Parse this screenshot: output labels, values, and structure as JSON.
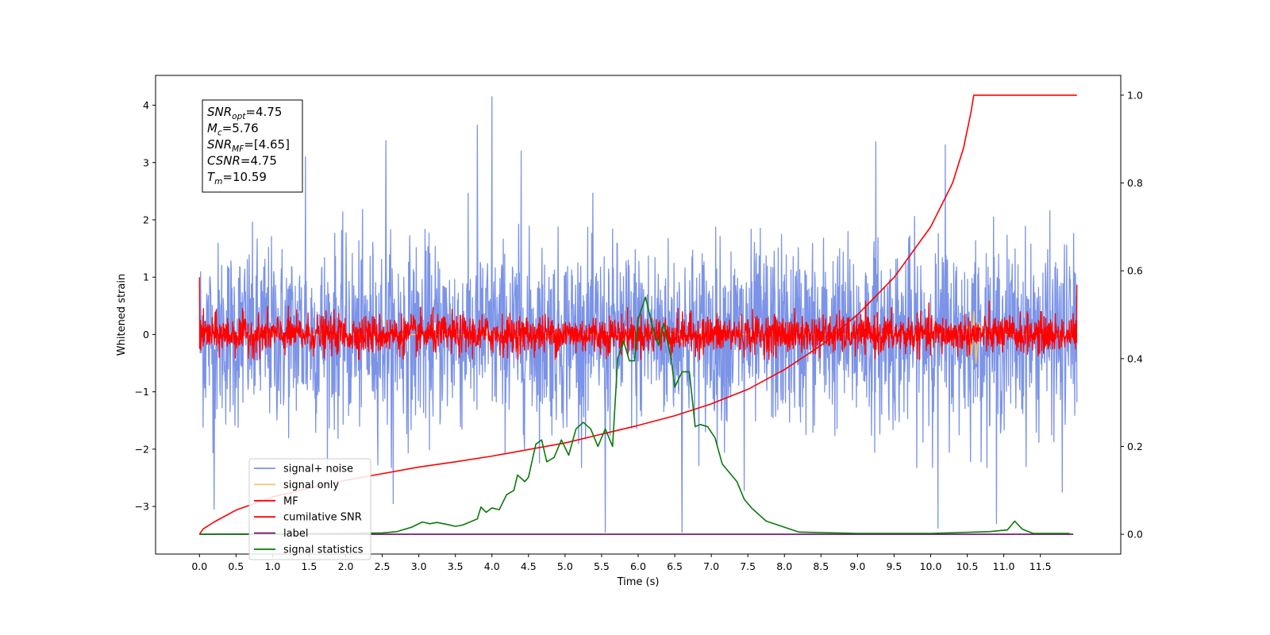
{
  "chart_data": {
    "type": "line",
    "xlabel": "Time (s)",
    "ylabel": "Whitened strain",
    "xlim": [
      -0.6,
      12.6
    ],
    "ylim": [
      -3.83,
      4.52
    ],
    "y2lim": [
      -0.045,
      1.045
    ],
    "x_ticks": [
      0.0,
      0.5,
      1.0,
      1.5,
      2.0,
      2.5,
      3.0,
      3.5,
      4.0,
      4.5,
      5.0,
      5.5,
      6.0,
      6.5,
      7.0,
      7.5,
      8.0,
      8.5,
      9.0,
      9.5,
      10.0,
      10.5,
      11.0,
      11.5
    ],
    "x_tick_labels": [
      "0.0",
      "0.5",
      "1.0",
      "1.5",
      "2.0",
      "2.5",
      "3.0",
      "3.5",
      "4.0",
      "4.5",
      "5.0",
      "5.5",
      "6.0",
      "6.5",
      "7.0",
      "7.5",
      "8.0",
      "8.5",
      "9.0",
      "9.5",
      "10.0",
      "10.5",
      "11.0",
      "11.5"
    ],
    "y_ticks": [
      -3,
      -2,
      -1,
      0,
      1,
      2,
      3,
      4
    ],
    "y_tick_labels": [
      "−3",
      "−2",
      "−1",
      "0",
      "1",
      "2",
      "3",
      "4"
    ],
    "y2_ticks": [
      0.0,
      0.2,
      0.4,
      0.6,
      0.8,
      1.0
    ],
    "y2_tick_labels": [
      "0.0",
      "0.2",
      "0.4",
      "0.6",
      "0.8",
      "1.0"
    ],
    "annotation": {
      "lines": [
        {
          "base": "SNR",
          "sub": "opt",
          "rest": "=4.75"
        },
        {
          "base": "M",
          "sub": "c",
          "rest": "=5.76"
        },
        {
          "base": "SNR",
          "sub": "MF",
          "rest": "=[4.65]"
        },
        {
          "base": "CSNR",
          "sub": "",
          "rest": "=4.75"
        },
        {
          "base": "T",
          "sub": "m",
          "rest": "=10.59"
        }
      ]
    },
    "legend": {
      "placement": "lower-left",
      "entries": [
        "signal+ noise",
        "signal only",
        "MF",
        "cumilative SNR",
        "label",
        "signal statistics"
      ]
    },
    "series": [
      {
        "name": "signal+ noise",
        "axis": "left",
        "color": "#7b93e8",
        "noise_band": {
          "t_start": 0.0,
          "t_end": 12.0,
          "center": 0.0,
          "typical_low": -1.6,
          "typical_high": 1.7
        },
        "peaks": [
          {
            "x": 3.8,
            "y": 3.65
          },
          {
            "x": 4.0,
            "y": 4.15
          },
          {
            "x": 2.55,
            "y": 3.38
          },
          {
            "x": 9.25,
            "y": 3.36
          },
          {
            "x": 10.2,
            "y": 3.31
          },
          {
            "x": 4.4,
            "y": 3.2
          },
          {
            "x": 1.45,
            "y": 3.1
          },
          {
            "x": 5.55,
            "y": -3.45
          },
          {
            "x": 6.6,
            "y": -3.45
          },
          {
            "x": 10.1,
            "y": -3.38
          },
          {
            "x": 10.9,
            "y": -3.3
          },
          {
            "x": 0.2,
            "y": -3.05
          },
          {
            "x": 2.65,
            "y": -2.95
          },
          {
            "x": 11.8,
            "y": -2.75
          },
          {
            "x": 7.45,
            "y": -2.72
          }
        ]
      },
      {
        "name": "signal only",
        "axis": "left",
        "color": "#f5c46b",
        "points": [
          [
            0.0,
            0.0
          ],
          [
            10.4,
            0.0
          ],
          [
            10.52,
            0.15
          ],
          [
            10.56,
            -0.35
          ],
          [
            10.59,
            0.4
          ],
          [
            10.62,
            -0.5
          ],
          [
            10.66,
            0.2
          ],
          [
            10.7,
            0.0
          ],
          [
            12.0,
            0.0
          ]
        ]
      },
      {
        "name": "MF",
        "axis": "left",
        "color": "#ff0000",
        "noise_band": {
          "t_start": 0.0,
          "t_end": 12.0,
          "center": 0.0,
          "typical_low": -0.3,
          "typical_high": 0.4
        },
        "start_value": 1.0,
        "end_value": 0.87
      },
      {
        "name": "cumilative SNR",
        "axis": "right",
        "color": "#ff0000",
        "points": [
          [
            0.0,
            0.0
          ],
          [
            0.05,
            0.012
          ],
          [
            0.2,
            0.028
          ],
          [
            0.5,
            0.055
          ],
          [
            1.0,
            0.085
          ],
          [
            1.5,
            0.105
          ],
          [
            2.0,
            0.123
          ],
          [
            2.5,
            0.138
          ],
          [
            3.0,
            0.153
          ],
          [
            3.5,
            0.165
          ],
          [
            4.0,
            0.178
          ],
          [
            4.5,
            0.193
          ],
          [
            5.0,
            0.208
          ],
          [
            5.5,
            0.228
          ],
          [
            6.0,
            0.248
          ],
          [
            6.5,
            0.27
          ],
          [
            7.0,
            0.297
          ],
          [
            7.5,
            0.33
          ],
          [
            8.0,
            0.375
          ],
          [
            8.5,
            0.43
          ],
          [
            9.0,
            0.5
          ],
          [
            9.5,
            0.585
          ],
          [
            10.0,
            0.7
          ],
          [
            10.3,
            0.8
          ],
          [
            10.45,
            0.88
          ],
          [
            10.55,
            0.96
          ],
          [
            10.59,
            1.0
          ],
          [
            12.0,
            1.0
          ]
        ]
      },
      {
        "name": "label",
        "axis": "right",
        "color": "#6a0d6a",
        "points": [
          [
            0.0,
            0.0
          ],
          [
            11.95,
            0.0
          ]
        ]
      },
      {
        "name": "signal statistics",
        "axis": "right",
        "color": "#0a7a0a",
        "points": [
          [
            0.0,
            0.0
          ],
          [
            1.0,
            0.001
          ],
          [
            2.0,
            0.002
          ],
          [
            2.5,
            0.003
          ],
          [
            2.7,
            0.006
          ],
          [
            2.9,
            0.016
          ],
          [
            3.05,
            0.028
          ],
          [
            3.15,
            0.024
          ],
          [
            3.25,
            0.027
          ],
          [
            3.4,
            0.022
          ],
          [
            3.5,
            0.018
          ],
          [
            3.6,
            0.021
          ],
          [
            3.7,
            0.028
          ],
          [
            3.8,
            0.035
          ],
          [
            3.85,
            0.062
          ],
          [
            3.92,
            0.05
          ],
          [
            4.0,
            0.06
          ],
          [
            4.1,
            0.056
          ],
          [
            4.2,
            0.09
          ],
          [
            4.3,
            0.1
          ],
          [
            4.35,
            0.135
          ],
          [
            4.45,
            0.12
          ],
          [
            4.5,
            0.13
          ],
          [
            4.6,
            0.205
          ],
          [
            4.68,
            0.215
          ],
          [
            4.75,
            0.165
          ],
          [
            4.85,
            0.175
          ],
          [
            4.95,
            0.215
          ],
          [
            5.05,
            0.18
          ],
          [
            5.15,
            0.24
          ],
          [
            5.25,
            0.255
          ],
          [
            5.35,
            0.24
          ],
          [
            5.45,
            0.2
          ],
          [
            5.55,
            0.24
          ],
          [
            5.65,
            0.2
          ],
          [
            5.72,
            0.4
          ],
          [
            5.8,
            0.44
          ],
          [
            5.88,
            0.395
          ],
          [
            5.95,
            0.395
          ],
          [
            6.0,
            0.49
          ],
          [
            6.1,
            0.54
          ],
          [
            6.2,
            0.47
          ],
          [
            6.28,
            0.43
          ],
          [
            6.35,
            0.48
          ],
          [
            6.45,
            0.4
          ],
          [
            6.5,
            0.335
          ],
          [
            6.6,
            0.37
          ],
          [
            6.7,
            0.37
          ],
          [
            6.78,
            0.245
          ],
          [
            6.85,
            0.25
          ],
          [
            6.95,
            0.245
          ],
          [
            7.05,
            0.22
          ],
          [
            7.15,
            0.16
          ],
          [
            7.25,
            0.14
          ],
          [
            7.35,
            0.12
          ],
          [
            7.45,
            0.08
          ],
          [
            7.55,
            0.06
          ],
          [
            7.75,
            0.03
          ],
          [
            8.2,
            0.005
          ],
          [
            9.0,
            0.002
          ],
          [
            10.0,
            0.002
          ],
          [
            10.8,
            0.006
          ],
          [
            11.05,
            0.01
          ],
          [
            11.15,
            0.03
          ],
          [
            11.25,
            0.012
          ],
          [
            11.4,
            0.002
          ],
          [
            11.9,
            0.002
          ]
        ]
      }
    ]
  }
}
